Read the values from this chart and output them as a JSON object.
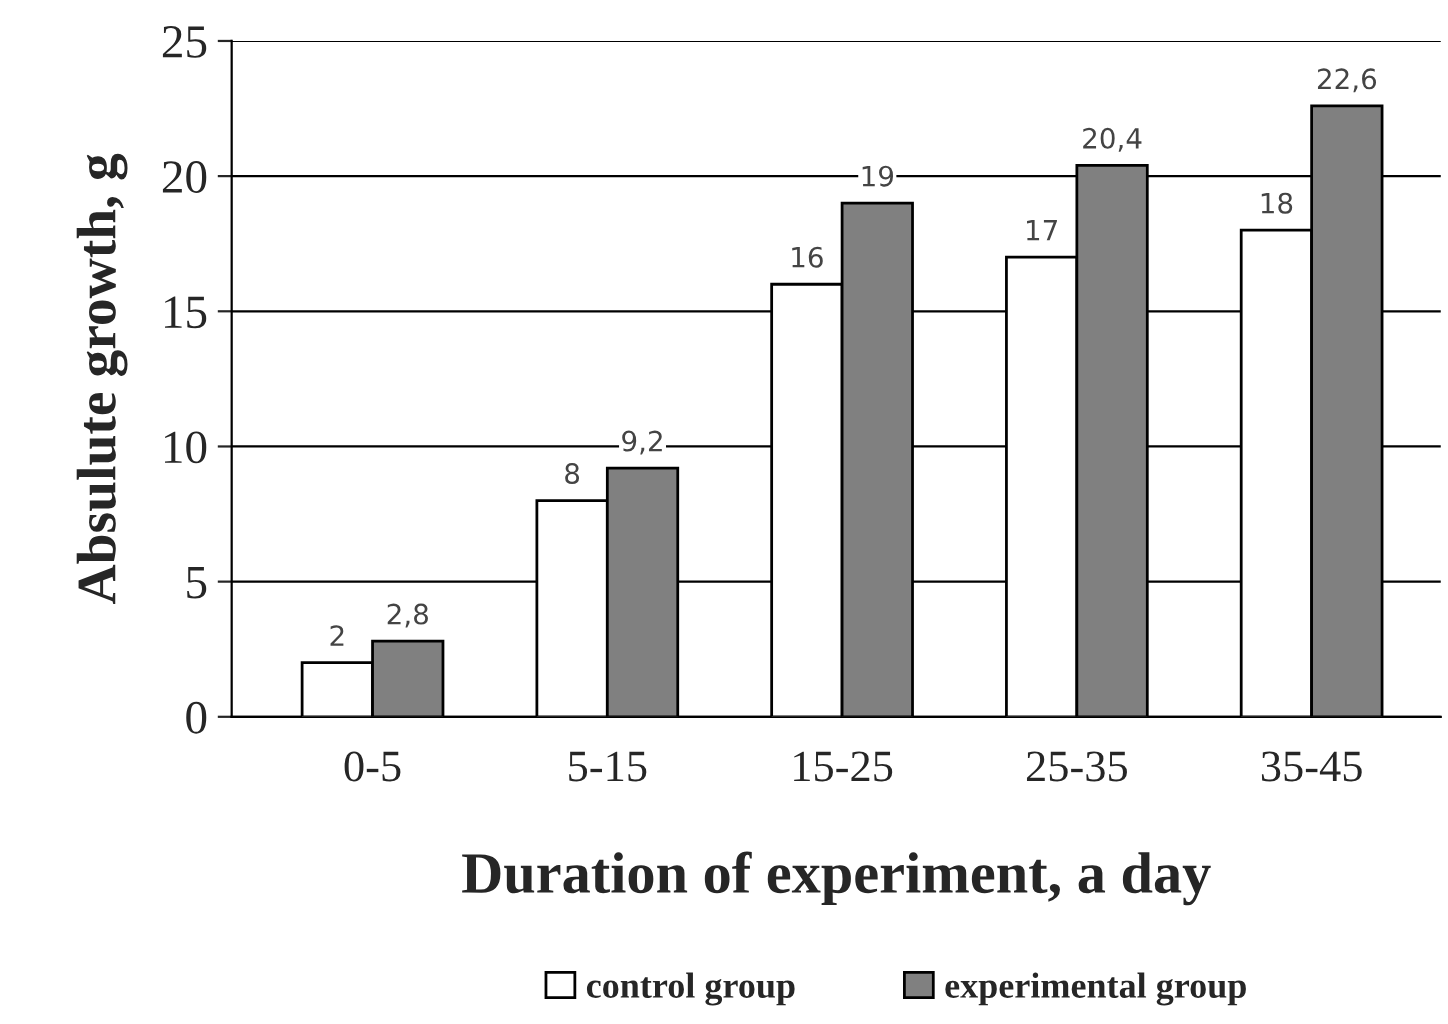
{
  "chart_data": {
    "type": "bar",
    "xlabel": "Duration of experiment, a day",
    "ylabel": "Absulute growth, g",
    "categories": [
      "0-5",
      "5-15",
      "15-25",
      "25-35",
      "35-45"
    ],
    "series": [
      {
        "name": "control group",
        "color": "#ffffff",
        "values": [
          2,
          8,
          16,
          17,
          18
        ],
        "value_labels": [
          "2",
          "8",
          "16",
          "17",
          "18"
        ]
      },
      {
        "name": "experimental group",
        "color": "#808080",
        "values": [
          2.8,
          9.2,
          19,
          20.4,
          22.6
        ],
        "value_labels": [
          "2,8",
          "9,2",
          "19",
          "20,4",
          "22,6"
        ]
      }
    ],
    "ylim": [
      0,
      25
    ],
    "yticks": [
      0,
      5,
      10,
      15,
      20,
      25
    ],
    "grid": "y",
    "legend": "bottom"
  }
}
